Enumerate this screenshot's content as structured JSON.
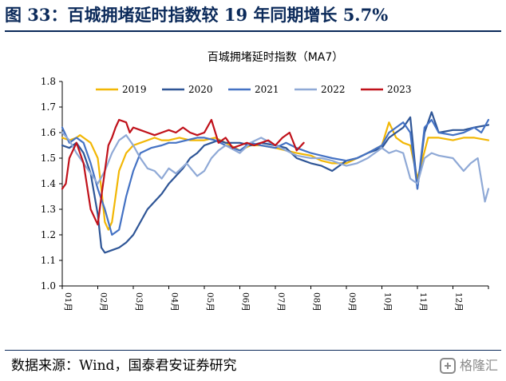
{
  "figure": {
    "title": "图 33：百城拥堵延时指数较 19 年同期增长 5.7%",
    "source": "数据来源：Wind，国泰君安证券研究",
    "watermark": "格隆汇"
  },
  "chart_data": {
    "type": "line",
    "title": "百城拥堵延时指数（MA7）",
    "xlabel": "",
    "ylabel": "",
    "ylim": [
      1.0,
      1.8
    ],
    "yticks": [
      "1.0",
      "1.1",
      "1.2",
      "1.3",
      "1.4",
      "1.5",
      "1.6",
      "1.7",
      "1.8"
    ],
    "xlim": [
      0,
      12
    ],
    "xticks": [
      "01月",
      "02月",
      "03月",
      "04月",
      "05月",
      "06月",
      "07月",
      "08月",
      "09月",
      "10月",
      "11月",
      "12月"
    ],
    "legend_position": "top",
    "grid": false,
    "colors": {
      "2019": "#f2b705",
      "2020": "#2e5596",
      "2021": "#4472c4",
      "2022": "#8fa9d6",
      "2023": "#c0111a"
    },
    "series": [
      {
        "name": "2019",
        "x": [
          0.0,
          0.2,
          0.4,
          0.5,
          0.6,
          0.8,
          1.0,
          1.1,
          1.2,
          1.3,
          1.4,
          1.5,
          1.6,
          1.8,
          2.0,
          2.2,
          2.4,
          2.6,
          2.8,
          3.0,
          3.3,
          3.6,
          4.0,
          4.3,
          4.6,
          5.0,
          5.3,
          5.6,
          6.0,
          6.3,
          6.6,
          7.0,
          7.3,
          7.6,
          8.0,
          8.3,
          8.6,
          9.0,
          9.2,
          9.4,
          9.6,
          9.8,
          10.0,
          10.3,
          10.6,
          11.0,
          11.3,
          11.6,
          12.0
        ],
        "y": [
          1.58,
          1.57,
          1.58,
          1.59,
          1.58,
          1.56,
          1.5,
          1.38,
          1.25,
          1.22,
          1.25,
          1.35,
          1.45,
          1.52,
          1.55,
          1.56,
          1.57,
          1.58,
          1.57,
          1.57,
          1.58,
          1.57,
          1.57,
          1.58,
          1.56,
          1.53,
          1.55,
          1.55,
          1.54,
          1.53,
          1.52,
          1.51,
          1.49,
          1.48,
          1.48,
          1.5,
          1.52,
          1.55,
          1.64,
          1.58,
          1.56,
          1.55,
          1.42,
          1.58,
          1.58,
          1.57,
          1.58,
          1.58,
          1.57
        ]
      },
      {
        "name": "2020",
        "x": [
          0.0,
          0.2,
          0.4,
          0.6,
          0.8,
          1.0,
          1.1,
          1.2,
          1.4,
          1.6,
          1.8,
          2.0,
          2.2,
          2.4,
          2.6,
          2.8,
          3.0,
          3.2,
          3.4,
          3.6,
          3.8,
          4.0,
          4.2,
          4.4,
          4.6,
          5.0,
          5.3,
          5.6,
          6.0,
          6.3,
          6.6,
          7.0,
          7.3,
          7.6,
          8.0,
          8.3,
          8.6,
          9.0,
          9.2,
          9.4,
          9.6,
          9.8,
          10.0,
          10.2,
          10.4,
          10.6,
          11.0,
          11.3,
          11.6,
          12.0
        ],
        "y": [
          1.55,
          1.54,
          1.56,
          1.52,
          1.44,
          1.28,
          1.15,
          1.13,
          1.14,
          1.15,
          1.17,
          1.2,
          1.25,
          1.3,
          1.33,
          1.36,
          1.4,
          1.43,
          1.46,
          1.5,
          1.52,
          1.55,
          1.56,
          1.57,
          1.56,
          1.56,
          1.55,
          1.56,
          1.55,
          1.54,
          1.5,
          1.48,
          1.47,
          1.45,
          1.49,
          1.5,
          1.52,
          1.54,
          1.58,
          1.6,
          1.62,
          1.66,
          1.38,
          1.6,
          1.68,
          1.6,
          1.61,
          1.61,
          1.62,
          1.63
        ]
      },
      {
        "name": "2021",
        "x": [
          0.0,
          0.2,
          0.4,
          0.6,
          0.8,
          1.0,
          1.2,
          1.4,
          1.6,
          1.8,
          2.0,
          2.2,
          2.5,
          2.8,
          3.0,
          3.2,
          3.5,
          3.8,
          4.0,
          4.3,
          4.6,
          5.0,
          5.3,
          5.6,
          6.0,
          6.3,
          6.6,
          7.0,
          7.3,
          7.6,
          8.0,
          8.3,
          8.6,
          9.0,
          9.2,
          9.4,
          9.6,
          9.8,
          10.0,
          10.2,
          10.4,
          10.6,
          11.0,
          11.3,
          11.6,
          11.8,
          12.0
        ],
        "y": [
          1.62,
          1.56,
          1.58,
          1.56,
          1.48,
          1.38,
          1.3,
          1.2,
          1.22,
          1.35,
          1.45,
          1.52,
          1.54,
          1.55,
          1.56,
          1.56,
          1.57,
          1.58,
          1.58,
          1.57,
          1.55,
          1.53,
          1.56,
          1.55,
          1.54,
          1.56,
          1.54,
          1.52,
          1.51,
          1.5,
          1.49,
          1.5,
          1.52,
          1.55,
          1.6,
          1.62,
          1.64,
          1.6,
          1.38,
          1.62,
          1.65,
          1.6,
          1.59,
          1.6,
          1.62,
          1.6,
          1.65
        ]
      },
      {
        "name": "2022",
        "x": [
          0.0,
          0.2,
          0.4,
          0.6,
          0.8,
          1.0,
          1.2,
          1.4,
          1.6,
          1.8,
          2.0,
          2.2,
          2.4,
          2.6,
          2.8,
          3.0,
          3.2,
          3.5,
          3.8,
          4.0,
          4.2,
          4.4,
          4.6,
          5.0,
          5.3,
          5.6,
          6.0,
          6.3,
          6.6,
          7.0,
          7.3,
          7.6,
          8.0,
          8.3,
          8.6,
          9.0,
          9.2,
          9.4,
          9.6,
          9.8,
          10.0,
          10.2,
          10.4,
          10.6,
          11.0,
          11.3,
          11.5,
          11.7,
          11.9,
          12.0
        ],
        "y": [
          1.6,
          1.57,
          1.52,
          1.48,
          1.44,
          1.4,
          1.45,
          1.52,
          1.57,
          1.59,
          1.55,
          1.5,
          1.46,
          1.45,
          1.42,
          1.46,
          1.44,
          1.48,
          1.43,
          1.45,
          1.5,
          1.53,
          1.55,
          1.52,
          1.56,
          1.58,
          1.55,
          1.53,
          1.51,
          1.5,
          1.5,
          1.49,
          1.47,
          1.48,
          1.5,
          1.54,
          1.52,
          1.53,
          1.52,
          1.42,
          1.4,
          1.5,
          1.52,
          1.51,
          1.5,
          1.45,
          1.48,
          1.5,
          1.33,
          1.38
        ]
      },
      {
        "name": "2023",
        "x": [
          0.0,
          0.1,
          0.2,
          0.4,
          0.6,
          0.8,
          1.0,
          1.1,
          1.2,
          1.3,
          1.4,
          1.5,
          1.6,
          1.8,
          1.9,
          2.0,
          2.2,
          2.4,
          2.6,
          2.8,
          3.0,
          3.2,
          3.4,
          3.6,
          3.8,
          4.0,
          4.2,
          4.4,
          4.6,
          4.8,
          5.0,
          5.2,
          5.4,
          5.6,
          5.8,
          6.0,
          6.2,
          6.4,
          6.6,
          6.8
        ],
        "y": [
          1.38,
          1.4,
          1.5,
          1.56,
          1.48,
          1.3,
          1.24,
          1.35,
          1.45,
          1.55,
          1.58,
          1.62,
          1.65,
          1.64,
          1.6,
          1.62,
          1.61,
          1.6,
          1.59,
          1.6,
          1.61,
          1.6,
          1.62,
          1.6,
          1.59,
          1.6,
          1.65,
          1.56,
          1.58,
          1.54,
          1.55,
          1.56,
          1.55,
          1.56,
          1.57,
          1.55,
          1.58,
          1.6,
          1.53,
          1.56
        ]
      }
    ]
  }
}
